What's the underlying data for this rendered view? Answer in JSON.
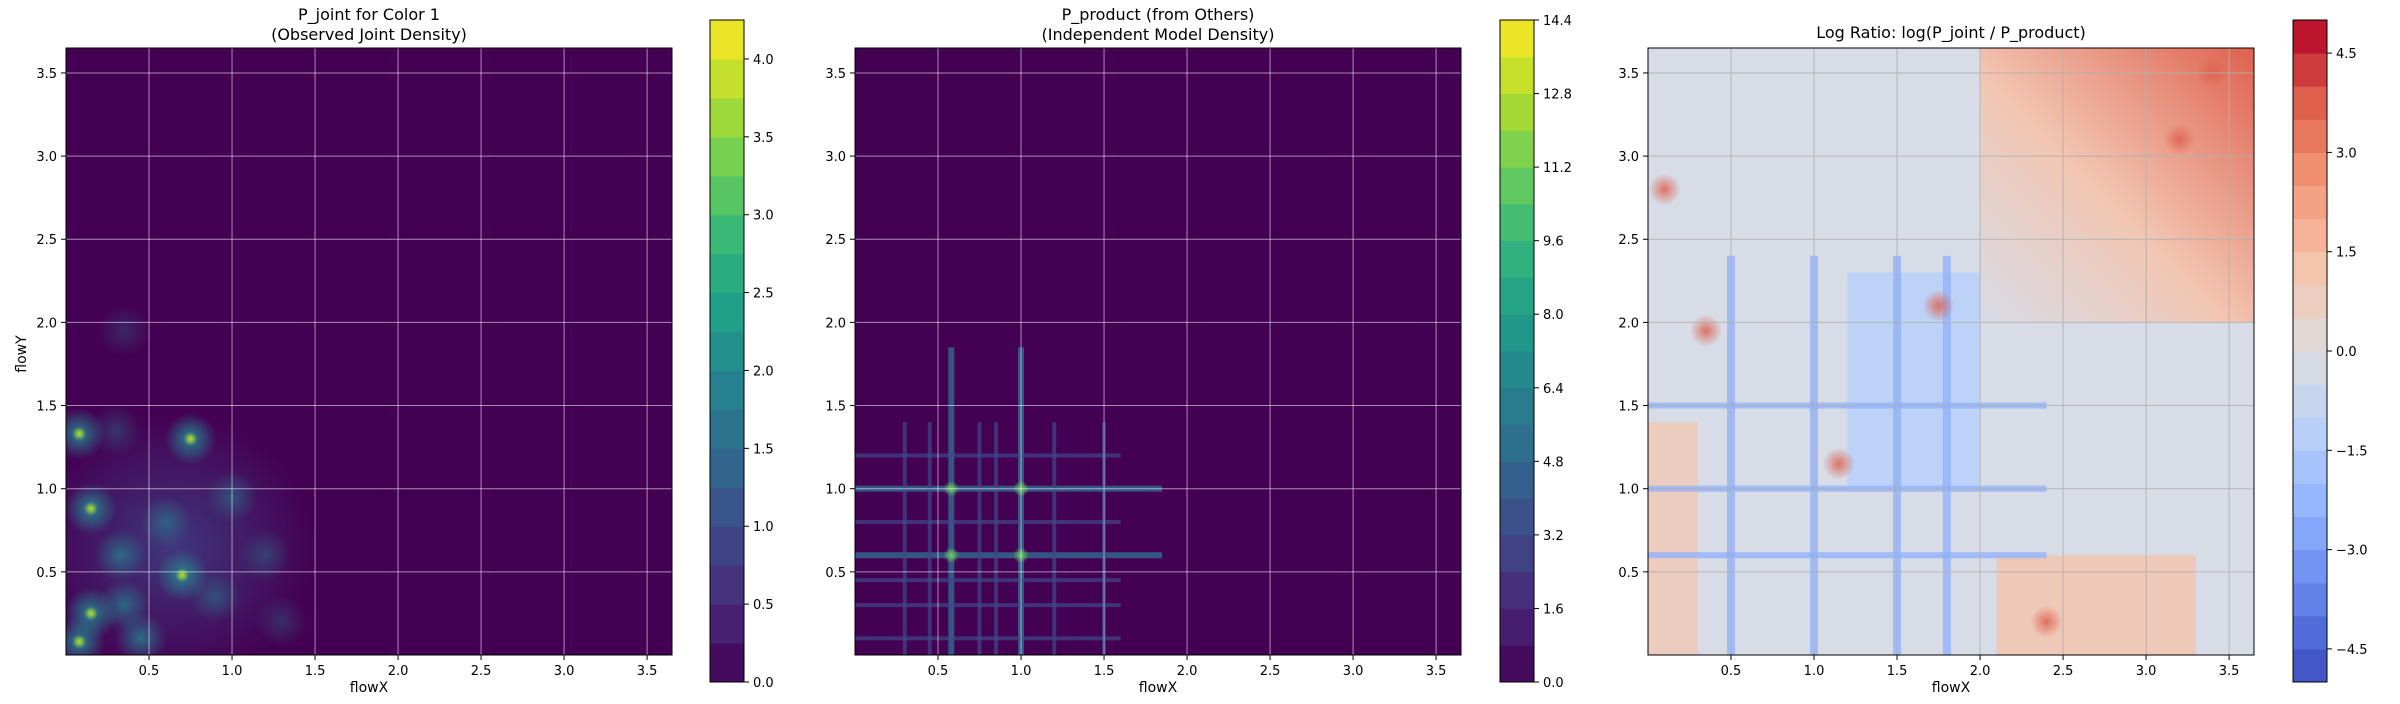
{
  "chart_data": [
    {
      "type": "heatmap",
      "title": "P_joint for Color 1\n(Observed Joint Density)",
      "xlabel": "flowX",
      "ylabel": "flowY",
      "xlim": [
        0.0,
        3.65
      ],
      "ylim": [
        0.0,
        3.65
      ],
      "xticks": [
        "0.5",
        "1.0",
        "1.5",
        "2.0",
        "2.5",
        "3.0",
        "3.5"
      ],
      "yticks": [
        "0.5",
        "1.0",
        "1.5",
        "2.0",
        "2.5",
        "3.0",
        "3.5"
      ],
      "grid": true,
      "colormap": "viridis",
      "colorbar": {
        "min": 0.0,
        "max": 4.25,
        "levels": 17,
        "ticks": [
          "0.0",
          "0.5",
          "1.0",
          "1.5",
          "2.0",
          "2.5",
          "3.0",
          "3.5",
          "4.0"
        ]
      },
      "hotspots": [
        {
          "x": 0.08,
          "y": 1.33,
          "value": 3.6
        },
        {
          "x": 0.75,
          "y": 1.3,
          "value": 3.8
        },
        {
          "x": 0.15,
          "y": 0.88,
          "value": 3.4
        },
        {
          "x": 0.7,
          "y": 0.48,
          "value": 3.5
        },
        {
          "x": 0.15,
          "y": 0.25,
          "value": 3.6
        },
        {
          "x": 0.08,
          "y": 0.08,
          "value": 4.2
        },
        {
          "x": 0.35,
          "y": 0.3,
          "value": 2.2
        },
        {
          "x": 0.33,
          "y": 0.6,
          "value": 2.2
        },
        {
          "x": 0.6,
          "y": 0.8,
          "value": 1.8
        },
        {
          "x": 1.0,
          "y": 0.95,
          "value": 1.6
        },
        {
          "x": 0.9,
          "y": 0.35,
          "value": 1.5
        },
        {
          "x": 1.2,
          "y": 0.6,
          "value": 1.2
        },
        {
          "x": 0.3,
          "y": 1.35,
          "value": 1.2
        },
        {
          "x": 0.35,
          "y": 1.95,
          "value": 0.9
        },
        {
          "x": 0.45,
          "y": 0.1,
          "value": 2.4
        },
        {
          "x": 1.3,
          "y": 0.2,
          "value": 1.0
        }
      ]
    },
    {
      "type": "heatmap",
      "title": "P_product (from Others)\n(Independent Model Density)",
      "xlabel": "flowX",
      "ylabel": "",
      "xlim": [
        0.0,
        3.65
      ],
      "ylim": [
        0.0,
        3.65
      ],
      "xticks": [
        "0.5",
        "1.0",
        "1.5",
        "2.0",
        "2.5",
        "3.0",
        "3.5"
      ],
      "yticks": [
        "0.5",
        "1.0",
        "1.5",
        "2.0",
        "2.5",
        "3.0",
        "3.5"
      ],
      "grid": true,
      "colormap": "viridis",
      "colorbar": {
        "min": 0.0,
        "max": 14.4,
        "levels": 18,
        "ticks": [
          "0.0",
          "1.6",
          "3.2",
          "4.8",
          "6.4",
          "8.0",
          "9.6",
          "11.2",
          "12.8",
          "14.4"
        ]
      },
      "grid_lines_x": [
        0.58,
        1.0
      ],
      "grid_lines_y": [
        0.6,
        1.0
      ],
      "peaks": [
        {
          "x": 0.58,
          "y": 1.0,
          "value": 7.5
        },
        {
          "x": 1.0,
          "y": 1.0,
          "value": 7.0
        },
        {
          "x": 0.58,
          "y": 0.6,
          "value": 8.5
        },
        {
          "x": 1.0,
          "y": 0.6,
          "value": 8.0
        }
      ]
    },
    {
      "type": "heatmap",
      "title": "Log Ratio: log(P_joint / P_product)",
      "xlabel": "flowX",
      "ylabel": "",
      "xlim": [
        0.0,
        3.65
      ],
      "ylim": [
        0.0,
        3.65
      ],
      "xticks": [
        "0.5",
        "1.0",
        "1.5",
        "2.0",
        "2.5",
        "3.0",
        "3.5"
      ],
      "yticks": [
        "0.5",
        "1.0",
        "1.5",
        "2.0",
        "2.5",
        "3.0",
        "3.5"
      ],
      "grid": true,
      "colormap": "coolwarm",
      "colorbar": {
        "min": -5.0,
        "max": 5.0,
        "levels": 20,
        "ticks": [
          "−4.5",
          "−3.0",
          "−1.5",
          "0.0",
          "1.5",
          "3.0",
          "4.5"
        ]
      },
      "features": {
        "red_region": {
          "x_from": 2.0,
          "y_from": 2.0,
          "value": 2.5
        },
        "blue_region": {
          "x_from": 1.2,
          "x_to": 2.0,
          "y_from": 1.0,
          "y_to": 2.3,
          "value": -1.5
        },
        "blue_lines_x": [
          0.5,
          1.0,
          1.5,
          1.8
        ],
        "blue_lines_y": [
          0.6,
          1.0,
          1.5
        ]
      }
    }
  ]
}
